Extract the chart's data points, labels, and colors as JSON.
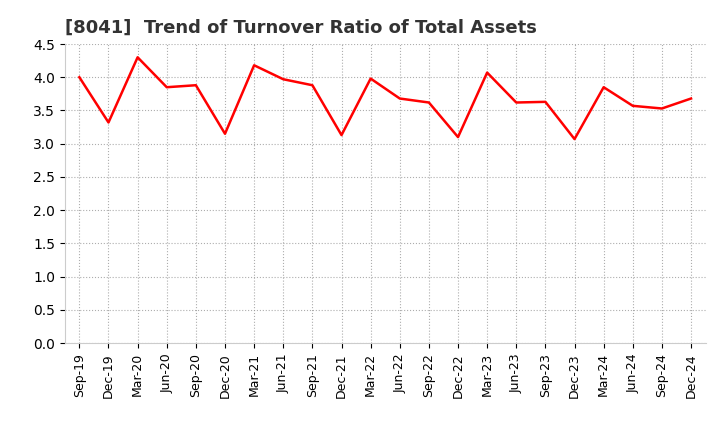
{
  "title": "[8041]  Trend of Turnover Ratio of Total Assets",
  "x_labels": [
    "Sep-19",
    "Dec-19",
    "Mar-20",
    "Jun-20",
    "Sep-20",
    "Dec-20",
    "Mar-21",
    "Jun-21",
    "Sep-21",
    "Dec-21",
    "Mar-22",
    "Jun-22",
    "Sep-22",
    "Dec-22",
    "Mar-23",
    "Jun-23",
    "Sep-23",
    "Dec-23",
    "Mar-24",
    "Jun-24",
    "Sep-24",
    "Dec-24"
  ],
  "values": [
    4.0,
    3.32,
    4.3,
    3.85,
    3.88,
    3.15,
    4.18,
    3.97,
    3.88,
    3.13,
    3.98,
    3.68,
    3.62,
    3.1,
    4.07,
    3.62,
    3.63,
    3.07,
    3.85,
    3.57,
    3.53,
    3.68
  ],
  "line_color": "#ff0000",
  "line_width": 1.8,
  "ylim": [
    0.0,
    4.5
  ],
  "yticks": [
    0.0,
    0.5,
    1.0,
    1.5,
    2.0,
    2.5,
    3.0,
    3.5,
    4.0,
    4.5
  ],
  "grid_color": "#999999",
  "bg_color": "#ffffff",
  "title_fontsize": 13,
  "tick_fontsize": 10,
  "title_color": "#333333"
}
